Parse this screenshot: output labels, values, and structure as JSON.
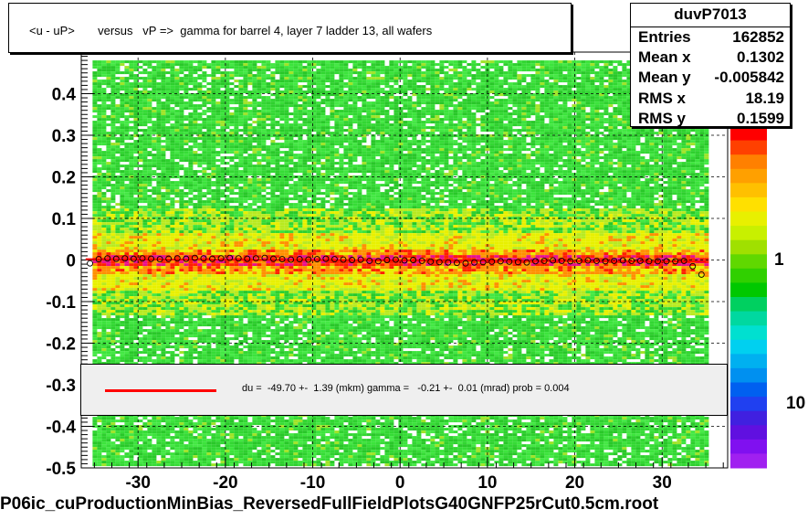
{
  "chart_data": {
    "type": "heatmap",
    "title": "<u - uP>       versus   vP =>  gamma for barrel 4, layer 7 ladder 13, all wafers",
    "xlim": [
      -36.5,
      37.5
    ],
    "ylim": [
      -0.5,
      0.5
    ],
    "x_ticks": [
      -30,
      -20,
      -10,
      0,
      10,
      20,
      30
    ],
    "x_tick_labels": [
      "-30",
      "-20",
      "-10",
      "0",
      "10",
      "20",
      "30"
    ],
    "y_ticks": [
      -0.5,
      -0.4,
      -0.3,
      -0.2,
      -0.1,
      0,
      0.1,
      0.2,
      0.3,
      0.4
    ],
    "y_tick_labels": [
      "-0.5",
      "-0.4",
      "-0.3",
      "-0.2",
      "-0.1",
      "0",
      "0.1",
      "0.2",
      "0.3",
      "0.4"
    ],
    "grid": true,
    "colorbar_labels": [
      "1",
      "10"
    ],
    "profile_points": {
      "x": [
        -35.5,
        -34.5,
        -33.5,
        -32.5,
        -31.5,
        -30.5,
        -29.5,
        -28.5,
        -27.5,
        -26.5,
        -25.5,
        -24.5,
        -23.5,
        -22.5,
        -21.5,
        -20.5,
        -19.5,
        -18.5,
        -17.5,
        -16.5,
        -15.5,
        -14.5,
        -13.5,
        -12.5,
        -11.5,
        -10.5,
        -9.5,
        -8.5,
        -7.5,
        -6.5,
        -5.5,
        -4.5,
        -3.5,
        -2.5,
        -1.5,
        -0.5,
        0.5,
        1.5,
        2.5,
        3.5,
        4.5,
        5.5,
        6.5,
        7.5,
        8.5,
        9.5,
        10.5,
        11.5,
        12.5,
        13.5,
        14.5,
        15.5,
        16.5,
        17.5,
        18.5,
        19.5,
        20.5,
        21.5,
        22.5,
        23.5,
        24.5,
        25.5,
        26.5,
        27.5,
        28.5,
        29.5,
        30.5,
        31.5,
        32.5,
        33.5,
        34.5
      ],
      "y": [
        -0.008,
        0.002,
        0.004,
        0.003,
        0.004,
        0.003,
        0.004,
        0.003,
        0.002,
        0.003,
        0.004,
        0.003,
        0.005,
        0.004,
        0.003,
        0.004,
        0.005,
        0.004,
        0.003,
        0.004,
        0.005,
        0.003,
        0.002,
        0.001,
        0.002,
        0.001,
        0.002,
        0.003,
        0.002,
        0.001,
        0.0,
        0.001,
        -0.002,
        -0.003,
        0.0,
        0.001,
        -0.001,
        0.0,
        -0.002,
        -0.004,
        -0.005,
        -0.006,
        -0.007,
        -0.008,
        -0.006,
        -0.005,
        -0.004,
        -0.003,
        -0.004,
        -0.005,
        -0.006,
        -0.003,
        -0.002,
        -0.001,
        -0.002,
        -0.003,
        -0.002,
        -0.001,
        -0.002,
        -0.003,
        -0.002,
        -0.001,
        -0.002,
        -0.002,
        -0.003,
        -0.003,
        -0.003,
        -0.003,
        -0.002,
        -0.015,
        -0.035
      ]
    },
    "fit_line": {
      "x": [
        -36,
        35
      ],
      "y": [
        0.002,
        -0.004
      ],
      "color": "#ff0000"
    }
  },
  "stats": {
    "name": "duvP7013",
    "rows": [
      {
        "key": "Entries",
        "value": "162852"
      },
      {
        "key": "Mean x",
        "value": "0.1302"
      },
      {
        "key": "Mean y",
        "value": "-0.005842"
      },
      {
        "key": "RMS x",
        "value": "18.19"
      },
      {
        "key": "RMS y",
        "value": "0.1599"
      }
    ]
  },
  "fit_text": "du =  -49.70 +-  1.39 (mkm) gamma =   -0.21 +-  0.01 (mrad) prob = 0.004",
  "footer": "P06ic_cuProductionMinBias_ReversedFullFieldPlotsG40GNFP25rCut0.5cm.root",
  "colors": {
    "green": "#32d732",
    "yellow": "#e8f000",
    "orange": "#ff9000",
    "red": "#ff2000",
    "magenta": "#e8108c",
    "frame": "#000000"
  }
}
